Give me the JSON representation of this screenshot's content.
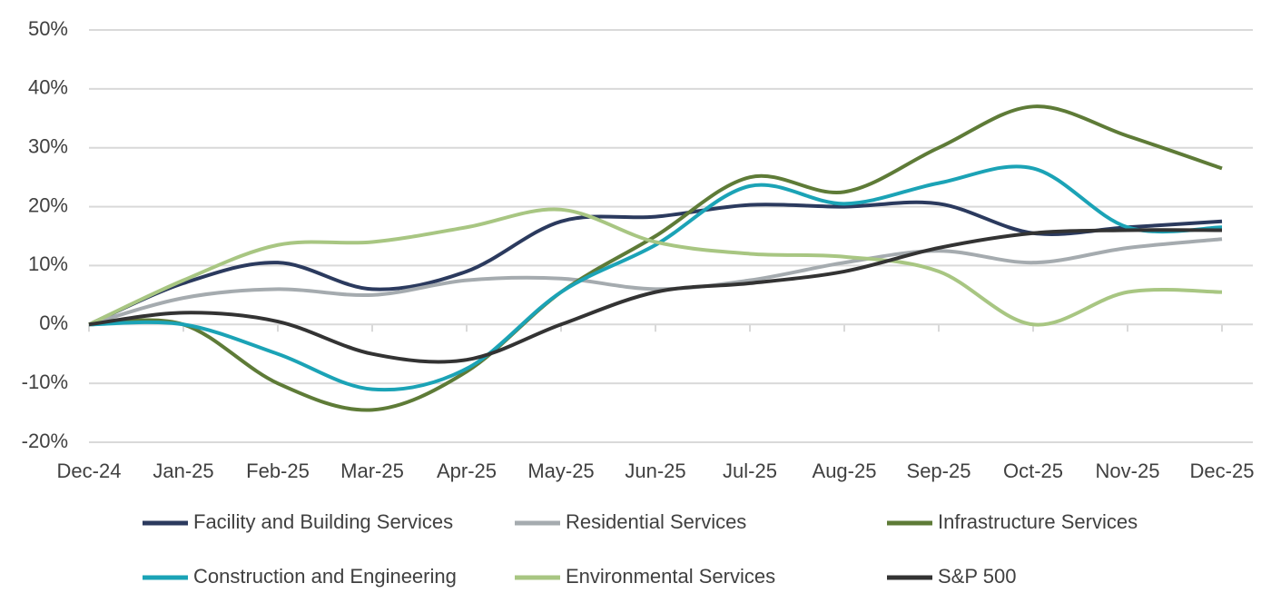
{
  "chart_data": {
    "type": "line",
    "categories": [
      "Dec-24",
      "Jan-25",
      "Feb-25",
      "Mar-25",
      "Apr-25",
      "May-25",
      "Jun-25",
      "Jul-25",
      "Aug-25",
      "Sep-25",
      "Oct-25",
      "Nov-25",
      "Dec-25"
    ],
    "series": [
      {
        "name": "Facility and Building Services",
        "color": "#2b3a5e",
        "values": [
          0,
          7,
          10.5,
          6,
          9,
          17.5,
          18.3,
          20.3,
          20,
          20.5,
          15.5,
          16.5,
          17.5
        ]
      },
      {
        "name": "Residential Services",
        "color": "#a5abaf",
        "values": [
          0,
          4.5,
          6,
          5,
          7.5,
          7.8,
          6,
          7.5,
          10.5,
          12.5,
          10.5,
          13,
          14.5
        ]
      },
      {
        "name": "Infrastructure Services",
        "color": "#5e7b37",
        "values": [
          0,
          0,
          -10,
          -14.5,
          -8,
          5.5,
          15,
          25,
          22.5,
          30,
          37,
          32,
          26.5
        ]
      },
      {
        "name": "Construction and Engineering",
        "color": "#1ba3b6",
        "values": [
          0,
          0,
          -5,
          -11,
          -7.5,
          5.5,
          13.5,
          23.5,
          20.5,
          24,
          26.5,
          16.5,
          16.5
        ]
      },
      {
        "name": "Environmental Services",
        "color": "#a8c682",
        "values": [
          0,
          7.5,
          13.5,
          14,
          16.5,
          19.5,
          14,
          12,
          11.5,
          9,
          0,
          5.5,
          5.5
        ]
      },
      {
        "name": "S&P 500",
        "color": "#333333",
        "values": [
          0,
          2,
          0.5,
          -5,
          -6,
          0,
          5.5,
          7,
          9,
          13,
          15.5,
          16,
          16
        ]
      }
    ],
    "ylim": [
      -20,
      50
    ],
    "yticks": [
      {
        "value": -20,
        "label": "-20%"
      },
      {
        "value": -10,
        "label": "-10%"
      },
      {
        "value": 0,
        "label": "0%"
      },
      {
        "value": 10,
        "label": "10%"
      },
      {
        "value": 20,
        "label": "20%"
      },
      {
        "value": 30,
        "label": "30%"
      },
      {
        "value": 40,
        "label": "40%"
      },
      {
        "value": 50,
        "label": "50%"
      }
    ],
    "grid": true
  }
}
